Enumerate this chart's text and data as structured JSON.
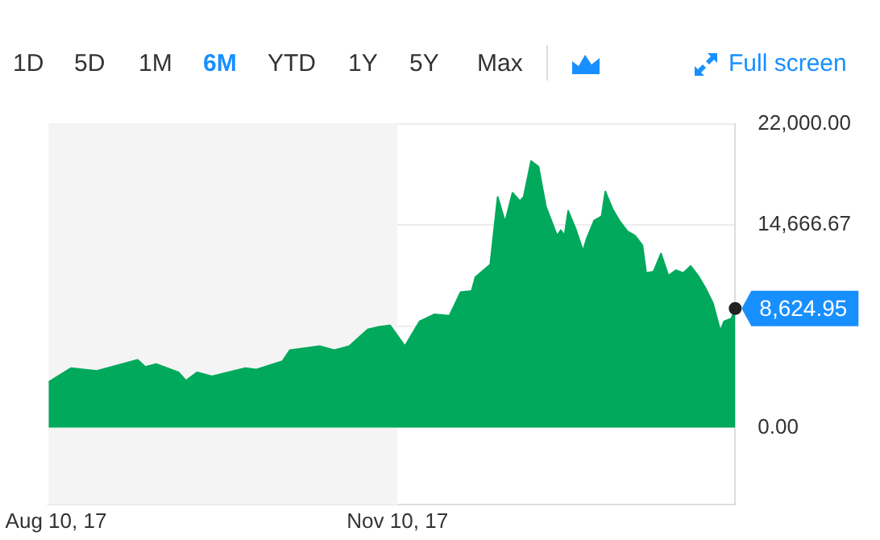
{
  "chart_data": {
    "type": "area",
    "x": [
      "2017-08-08",
      "2017-08-14",
      "2017-08-21",
      "2017-09-01",
      "2017-09-03",
      "2017-09-06",
      "2017-09-12",
      "2017-09-14",
      "2017-09-17",
      "2017-09-21",
      "2017-09-30",
      "2017-10-03",
      "2017-10-10",
      "2017-10-12",
      "2017-10-20",
      "2017-10-24",
      "2017-10-28",
      "2017-11-02",
      "2017-11-05",
      "2017-11-08",
      "2017-11-12",
      "2017-11-16",
      "2017-11-20",
      "2017-11-24",
      "2017-11-27",
      "2017-11-30",
      "2017-12-01",
      "2017-12-05",
      "2017-12-07",
      "2017-12-09",
      "2017-12-11",
      "2017-12-13",
      "2017-12-14",
      "2017-12-16",
      "2017-12-18",
      "2017-12-20",
      "2017-12-23",
      "2017-12-24",
      "2017-12-25",
      "2017-12-26",
      "2017-12-28",
      "2017-12-30",
      "2017-12-31",
      "2018-01-02",
      "2018-01-04",
      "2018-01-05",
      "2018-01-07",
      "2018-01-09",
      "2018-01-11",
      "2018-01-13",
      "2018-01-15",
      "2018-01-16",
      "2018-01-18",
      "2018-01-20",
      "2018-01-22",
      "2018-01-24",
      "2018-01-26",
      "2018-01-28",
      "2018-01-30",
      "2018-02-01",
      "2018-02-03",
      "2018-02-05",
      "2018-02-06",
      "2018-02-08",
      "2018-02-09"
    ],
    "series": [
      {
        "color": "#00a95c",
        "values": [
          3300,
          4300,
          4100,
          4900,
          4400,
          4600,
          4000,
          3400,
          4000,
          3700,
          4300,
          4200,
          4800,
          5600,
          5900,
          5600,
          5900,
          7100,
          7300,
          7400,
          5900,
          7700,
          8200,
          8100,
          9800,
          9900,
          10900,
          11800,
          16700,
          14900,
          17000,
          16400,
          16700,
          19300,
          18900,
          16000,
          13900,
          14300,
          13900,
          15700,
          14400,
          12800,
          13700,
          15000,
          15300,
          17100,
          15800,
          14900,
          14200,
          13900,
          13200,
          11200,
          11300,
          12600,
          11000,
          11400,
          11200,
          11700,
          11000,
          10100,
          9000,
          7000,
          7700,
          7900,
          8624.95
        ]
      }
    ],
    "xlim": [
      "2017-08-08",
      "2018-02-09"
    ],
    "xticks": [
      {
        "value": "2017-08-10",
        "label": "Aug 10, 17"
      },
      {
        "value": "2017-11-10",
        "label": "Nov 10, 17"
      }
    ],
    "ylim": [
      -5600,
      22000
    ],
    "yticks": [
      {
        "value": 0,
        "label": "0.00"
      },
      {
        "value": 7333.33,
        "label": null
      },
      {
        "value": 14666.67,
        "label": "14,666.67"
      },
      {
        "value": 22000,
        "label": "22,000.00"
      }
    ],
    "bands": [
      {
        "axis": "x",
        "from": "2017-08-08",
        "to": "2017-11-10",
        "color": "#f4f4f4"
      }
    ],
    "annotations": [
      "1D",
      "5D",
      "1M",
      "6M",
      "YTD",
      "1Y",
      "5Y",
      "Max",
      "Full screen",
      {
        "text": "8,624.95",
        "x": "2018-02-09",
        "y": 8624.95
      }
    ],
    "grid": "y",
    "legend": false
  }
}
